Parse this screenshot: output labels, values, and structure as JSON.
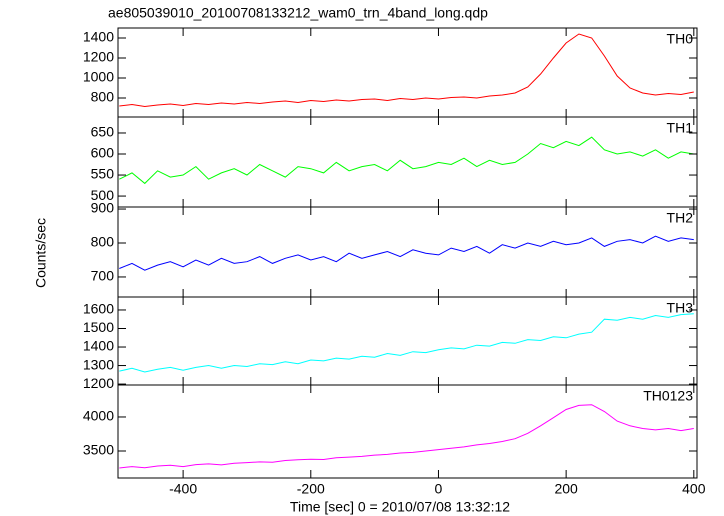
{
  "figure": {
    "title": "ae805039010_20100708133212_wam0_trn_4band_long.qdp",
    "ylabel": "Counts/sec",
    "xlabel": "Time [sec] 0 = 2010/07/08 13:32:12"
  },
  "chart_data": [
    {
      "type": "line",
      "xlim": [
        -502,
        405
      ],
      "ylim": [
        610,
        1500
      ],
      "yticks": [
        800,
        1000,
        1200,
        1400
      ],
      "x": [
        -500,
        -480,
        -460,
        -440,
        -420,
        -400,
        -380,
        -360,
        -340,
        -320,
        -300,
        -280,
        -260,
        -240,
        -220,
        -200,
        -180,
        -160,
        -140,
        -120,
        -100,
        -80,
        -60,
        -40,
        -20,
        0,
        20,
        40,
        60,
        80,
        100,
        120,
        140,
        160,
        180,
        200,
        220,
        240,
        260,
        280,
        300,
        320,
        340,
        360,
        380,
        400
      ],
      "series": [
        {
          "name": "TH0",
          "color": "#ff0000",
          "values": [
            720,
            735,
            715,
            730,
            740,
            725,
            745,
            735,
            750,
            740,
            755,
            745,
            760,
            770,
            755,
            775,
            765,
            780,
            770,
            785,
            790,
            775,
            795,
            785,
            800,
            790,
            805,
            810,
            800,
            820,
            830,
            850,
            910,
            1040,
            1200,
            1350,
            1440,
            1400,
            1220,
            1020,
            900,
            850,
            830,
            845,
            835,
            860
          ]
        }
      ]
    },
    {
      "type": "line",
      "xlim": [
        -502,
        405
      ],
      "ylim": [
        474,
        688
      ],
      "yticks": [
        500,
        550,
        600,
        650
      ],
      "x": [
        -500,
        -480,
        -460,
        -440,
        -420,
        -400,
        -380,
        -360,
        -340,
        -320,
        -300,
        -280,
        -260,
        -240,
        -220,
        -200,
        -180,
        -160,
        -140,
        -120,
        -100,
        -80,
        -60,
        -40,
        -20,
        0,
        20,
        40,
        60,
        80,
        100,
        120,
        140,
        160,
        180,
        200,
        220,
        240,
        260,
        280,
        300,
        320,
        340,
        360,
        380,
        400
      ],
      "series": [
        {
          "name": "TH1",
          "color": "#00ff00",
          "values": [
            540,
            555,
            530,
            560,
            545,
            550,
            570,
            540,
            555,
            565,
            550,
            575,
            560,
            545,
            570,
            565,
            555,
            580,
            560,
            570,
            575,
            560,
            585,
            565,
            570,
            580,
            575,
            590,
            570,
            585,
            575,
            580,
            600,
            625,
            615,
            630,
            620,
            640,
            610,
            600,
            605,
            595,
            610,
            590,
            605,
            600
          ]
        }
      ]
    },
    {
      "type": "line",
      "xlim": [
        -502,
        405
      ],
      "ylim": [
        641,
        906
      ],
      "yticks": [
        700,
        800,
        900
      ],
      "x": [
        -500,
        -480,
        -460,
        -440,
        -420,
        -400,
        -380,
        -360,
        -340,
        -320,
        -300,
        -280,
        -260,
        -240,
        -220,
        -200,
        -180,
        -160,
        -140,
        -120,
        -100,
        -80,
        -60,
        -40,
        -20,
        0,
        20,
        40,
        60,
        80,
        100,
        120,
        140,
        160,
        180,
        200,
        220,
        240,
        260,
        280,
        300,
        320,
        340,
        360,
        380,
        400
      ],
      "series": [
        {
          "name": "TH2",
          "color": "#0000ff",
          "values": [
            725,
            740,
            720,
            735,
            745,
            730,
            750,
            735,
            755,
            740,
            745,
            760,
            740,
            755,
            765,
            750,
            760,
            745,
            770,
            755,
            765,
            775,
            760,
            780,
            770,
            765,
            785,
            775,
            790,
            770,
            795,
            785,
            800,
            790,
            805,
            795,
            800,
            815,
            790,
            805,
            810,
            800,
            820,
            805,
            815,
            810
          ]
        }
      ]
    },
    {
      "type": "line",
      "xlim": [
        -502,
        405
      ],
      "ylim": [
        1195,
        1670
      ],
      "yticks": [
        1200,
        1300,
        1400,
        1500,
        1600
      ],
      "x": [
        -500,
        -480,
        -460,
        -440,
        -420,
        -400,
        -380,
        -360,
        -340,
        -320,
        -300,
        -280,
        -260,
        -240,
        -220,
        -200,
        -180,
        -160,
        -140,
        -120,
        -100,
        -80,
        -60,
        -40,
        -20,
        0,
        20,
        40,
        60,
        80,
        100,
        120,
        140,
        160,
        180,
        200,
        220,
        240,
        260,
        280,
        300,
        320,
        340,
        360,
        380,
        400
      ],
      "series": [
        {
          "name": "TH3",
          "color": "#00ffff",
          "values": [
            1270,
            1285,
            1265,
            1280,
            1290,
            1275,
            1290,
            1300,
            1285,
            1300,
            1295,
            1310,
            1305,
            1320,
            1310,
            1330,
            1325,
            1340,
            1335,
            1350,
            1345,
            1365,
            1355,
            1375,
            1370,
            1385,
            1395,
            1390,
            1410,
            1405,
            1425,
            1420,
            1440,
            1435,
            1455,
            1450,
            1470,
            1480,
            1550,
            1545,
            1560,
            1550,
            1570,
            1560,
            1575,
            1580
          ]
        }
      ]
    },
    {
      "type": "line",
      "xlim": [
        -502,
        405
      ],
      "ylim": [
        3103,
        4470
      ],
      "yticks": [
        3500,
        4000
      ],
      "xticks": [
        -400,
        -200,
        0,
        200,
        400
      ],
      "x": [
        -500,
        -480,
        -460,
        -440,
        -420,
        -400,
        -380,
        -360,
        -340,
        -320,
        -300,
        -280,
        -260,
        -240,
        -220,
        -200,
        -180,
        -160,
        -140,
        -120,
        -100,
        -80,
        -60,
        -40,
        -20,
        0,
        20,
        40,
        60,
        80,
        100,
        120,
        140,
        160,
        180,
        200,
        220,
        240,
        260,
        280,
        300,
        320,
        340,
        360,
        380,
        400
      ],
      "series": [
        {
          "name": "TH0123",
          "color": "#ff00ff",
          "values": [
            3250,
            3270,
            3255,
            3280,
            3290,
            3270,
            3300,
            3310,
            3295,
            3320,
            3330,
            3340,
            3335,
            3360,
            3370,
            3380,
            3375,
            3400,
            3410,
            3420,
            3440,
            3450,
            3470,
            3480,
            3500,
            3520,
            3540,
            3560,
            3590,
            3610,
            3640,
            3680,
            3760,
            3870,
            3990,
            4110,
            4170,
            4180,
            4080,
            3940,
            3870,
            3830,
            3810,
            3830,
            3800,
            3830
          ]
        }
      ]
    }
  ]
}
